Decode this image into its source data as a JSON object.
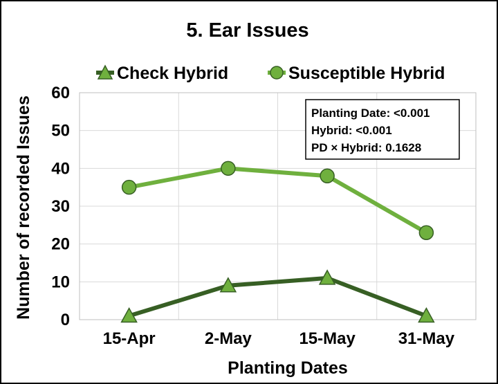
{
  "chart_data": {
    "type": "line",
    "title": "5. Ear Issues",
    "xlabel": "Planting Dates",
    "ylabel": "Number of recorded Issues",
    "categories": [
      "15-Apr",
      "2-May",
      "15-May",
      "31-May"
    ],
    "ylim": [
      0,
      60
    ],
    "yticks": [
      0,
      10,
      20,
      30,
      40,
      50,
      60
    ],
    "grid": true,
    "legend_position": "top",
    "series": [
      {
        "name": "Check Hybrid",
        "values": [
          1,
          9,
          11,
          1
        ],
        "color": "#375f24",
        "marker": "triangle"
      },
      {
        "name": "Susceptible Hybrid",
        "values": [
          35,
          40,
          38,
          23
        ],
        "color": "#6fb03e",
        "marker": "circle"
      }
    ],
    "annotations": {
      "stats": [
        "Planting Date: <0.001",
        "Hybrid: <0.001",
        "PD × Hybrid: 0.1628"
      ]
    }
  }
}
